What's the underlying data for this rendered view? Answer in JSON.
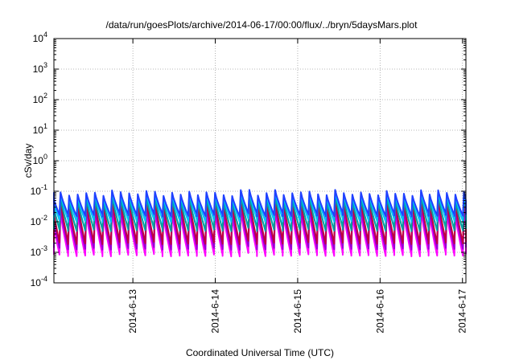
{
  "chart_data": {
    "type": "line",
    "title": "/data/run/goesPlots/archive/2014-06-17/00:00/flux/../bryn/5daysMars.plot",
    "xlabel": "Coordinated Universal Time (UTC)",
    "ylabel": "cSv/day",
    "yscale": "log",
    "ylim": [
      0.0001,
      10000
    ],
    "y_tick_exponents": [
      -4,
      -3,
      -2,
      -1,
      0,
      1,
      2,
      3,
      4
    ],
    "xlim": [
      "2014-06-12T01:00",
      "2014-06-17T01:00"
    ],
    "x_ticks": [
      {
        "date": "2014-06-13T00:00",
        "label": "2014-6-13"
      },
      {
        "date": "2014-06-14T00:00",
        "label": "2014-6-14"
      },
      {
        "date": "2014-06-15T00:00",
        "label": "2014-6-15"
      },
      {
        "date": "2014-06-16T00:00",
        "label": "2014-6-16"
      },
      {
        "date": "2014-06-17T00:00",
        "label": "2014-6-17"
      }
    ],
    "grid": true,
    "legend": "none",
    "sawtooth_period_hours": 2.5,
    "series": [
      {
        "color": "#ff00ff",
        "peak": 0.02,
        "trough": 0.0006
      },
      {
        "color": "#9400d3",
        "peak": 0.03,
        "trough": 0.001
      },
      {
        "color": "#c00040",
        "peak": 0.05,
        "trough": 0.0015
      },
      {
        "color": "#00a0a0",
        "peak": 0.06,
        "trough": 0.004
      },
      {
        "color": "#00bfff",
        "peak": 0.08,
        "trough": 0.008
      },
      {
        "color": "#2040ff",
        "peak": 0.09,
        "trough": 0.012
      }
    ]
  }
}
